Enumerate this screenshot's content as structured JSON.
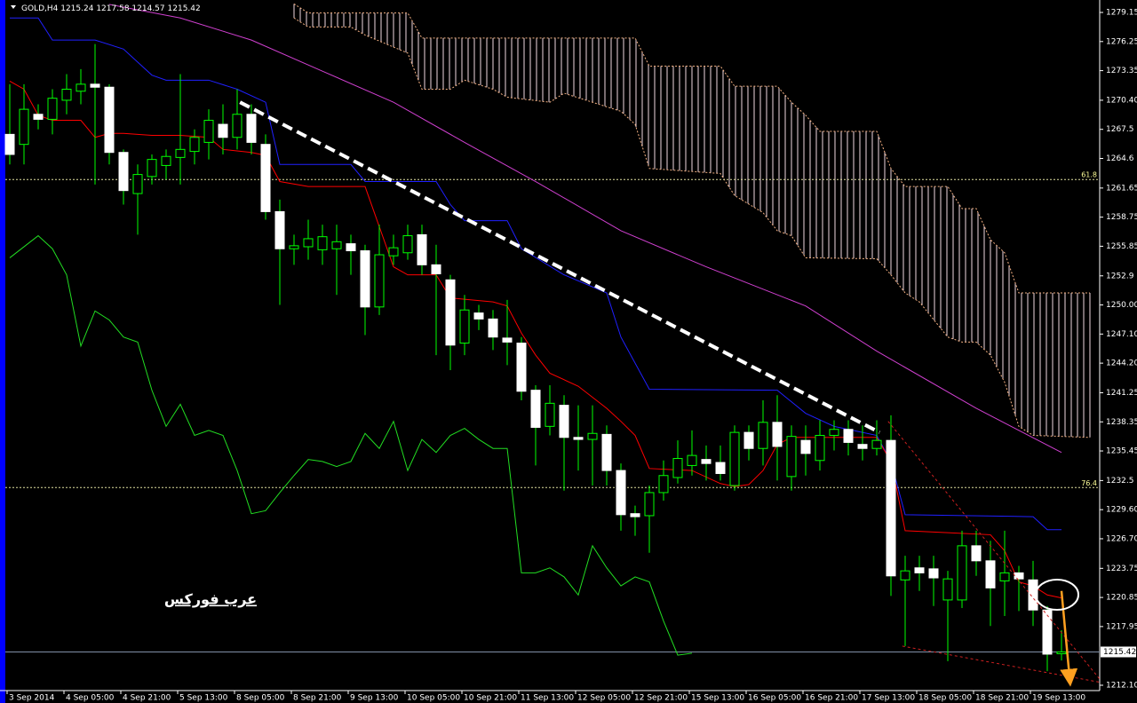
{
  "chart_data": {
    "type": "candlestick",
    "symbol": "GOLD,H4",
    "watermark": "عرب فوركس",
    "open": [
      1267.0,
      1266.0,
      1269.0,
      1268.5,
      1270.4,
      1271.3,
      1272.0,
      1271.7,
      1265.2,
      1261.1,
      1262.8,
      1263.9,
      1264.7,
      1265.3,
      1266.2,
      1268.0,
      1266.7,
      1269.0,
      1266.0,
      1259.3,
      1255.6,
      1255.8,
      1255.5,
      1255.6,
      1256.1,
      1255.4,
      1249.8,
      1254.9,
      1255.2,
      1257.0,
      1254.0,
      1252.5,
      1246.2,
      1249.2,
      1248.6,
      1246.7,
      1246.2,
      1241.5,
      1237.9,
      1240.0,
      1236.8,
      1236.6,
      1237.1,
      1233.5,
      1229.2,
      1229.0,
      1231.3,
      1232.8,
      1234.0,
      1234.6,
      1234.3,
      1232.0,
      1237.3,
      1235.7,
      1238.3,
      1232.9,
      1236.5,
      1234.5,
      1237.0,
      1237.6,
      1236.1,
      1235.7,
      1236.5,
      1222.6,
      1223.8,
      1223.7,
      1220.6,
      1220.6,
      1226.0,
      1224.5,
      1222.5,
      1223.3,
      1222.6,
      1219.6,
      1215.24
    ],
    "high": [
      1272,
      1272,
      1270,
      1271.5,
      1273,
      1273.5,
      1276,
      1272,
      1265.5,
      1264,
      1265,
      1265.5,
      1273,
      1267.5,
      1269.5,
      1270,
      1271.5,
      1270,
      1267,
      1260.5,
      1257,
      1258.5,
      1258,
      1258,
      1257,
      1256,
      1258,
      1257,
      1258,
      1258,
      1256,
      1253,
      1251,
      1250,
      1249.5,
      1250.5,
      1246.8,
      1242,
      1242,
      1241,
      1240,
      1240,
      1238,
      1234.2,
      1230,
      1232,
      1234.5,
      1236.5,
      1237.5,
      1236,
      1236,
      1238,
      1238,
      1240.5,
      1241,
      1238,
      1238,
      1238.5,
      1238.5,
      1238.5,
      1238,
      1238.5,
      1239,
      1225,
      1225,
      1225,
      1223.5,
      1227.5,
      1227.5,
      1226.5,
      1227.5,
      1224,
      1224.5,
      1220,
      1217.58
    ],
    "low": [
      1264,
      1264,
      1267.5,
      1267,
      1269,
      1270,
      1262,
      1264,
      1260,
      1257,
      1262,
      1262.5,
      1262,
      1264,
      1264.5,
      1265,
      1265.5,
      1265,
      1258.5,
      1250,
      1254,
      1254.5,
      1254,
      1251,
      1253,
      1247,
      1249,
      1254,
      1254.5,
      1253,
      1245,
      1243.5,
      1245,
      1247.5,
      1245.5,
      1244,
      1240.5,
      1234,
      1237,
      1231.5,
      1233.5,
      1232,
      1232,
      1227.5,
      1227,
      1225.3,
      1230.5,
      1232.2,
      1233,
      1232.5,
      1232.5,
      1231.5,
      1234.5,
      1234,
      1232.5,
      1231.5,
      1233,
      1233.5,
      1235.5,
      1235,
      1234.5,
      1235,
      1221,
      1216,
      1221.5,
      1220,
      1214.5,
      1219.8,
      1223,
      1218,
      1219,
      1219.5,
      1218,
      1213.5,
      1214.57
    ],
    "close": [
      1265.0,
      1269.5,
      1268.5,
      1270.6,
      1271.5,
      1272.0,
      1271.7,
      1265.2,
      1261.4,
      1263.0,
      1264.5,
      1264.8,
      1265.5,
      1266.7,
      1268.4,
      1266.7,
      1269.0,
      1266.2,
      1259.3,
      1255.6,
      1255.9,
      1256.6,
      1256.8,
      1256.3,
      1255.4,
      1249.8,
      1255.0,
      1255.7,
      1256.9,
      1254.0,
      1253.1,
      1246.0,
      1249.5,
      1248.6,
      1246.8,
      1246.3,
      1241.4,
      1237.8,
      1240.2,
      1236.8,
      1236.6,
      1237.2,
      1233.5,
      1229.1,
      1228.9,
      1231.3,
      1233.0,
      1234.7,
      1235.0,
      1234.2,
      1233.2,
      1237.3,
      1235.7,
      1238.3,
      1235.9,
      1236.9,
      1235.2,
      1237.0,
      1237.6,
      1236.3,
      1235.7,
      1236.5,
      1223.0,
      1223.5,
      1223.3,
      1222.8,
      1222.7,
      1226.0,
      1224.5,
      1221.8,
      1223.3,
      1222.7,
      1219.6,
      1215.2,
      1215.42
    ],
    "up_color": "#000000",
    "down_color": "#ffffff",
    "wick_color": "#00ff00",
    "lines": [
      {
        "color": "#2020ff",
        "x": [
          0,
          2,
          3,
          6,
          8,
          9,
          10,
          11,
          14,
          16,
          18,
          19,
          24,
          25,
          30,
          31,
          32,
          35,
          36,
          39,
          42,
          43,
          45,
          54,
          56,
          58,
          61,
          62,
          63,
          72,
          73,
          74
        ],
        "values": [
          1278.6,
          1278.6,
          1276.4,
          1276.4,
          1275.5,
          1274.2,
          1272.9,
          1272.4,
          1272.4,
          1271.5,
          1270.2,
          1264.0,
          1264.0,
          1262.3,
          1262.3,
          1260.0,
          1258.4,
          1258.4,
          1255.6,
          1253.0,
          1251.2,
          1246.8,
          1241.6,
          1241.5,
          1239.2,
          1237.9,
          1237.0,
          1234.4,
          1229.1,
          1228.9,
          1227.6,
          1227.6
        ]
      },
      {
        "color": "#ff0000",
        "x": [
          0,
          1,
          2,
          3,
          5,
          6,
          7,
          8,
          10,
          12,
          14,
          15,
          17,
          18,
          19,
          21,
          25,
          26,
          27,
          28,
          30,
          31,
          34,
          35,
          36,
          37,
          38,
          40,
          42,
          43,
          44,
          45,
          48,
          50,
          51,
          52,
          53,
          54,
          55,
          61,
          62,
          63,
          66,
          69,
          70,
          71,
          72,
          73,
          74
        ],
        "values": [
          1272.3,
          1271.5,
          1268.9,
          1268.4,
          1268.4,
          1266.7,
          1267.1,
          1267.1,
          1266.9,
          1266.9,
          1266.7,
          1265.5,
          1265.2,
          1264.9,
          1262.3,
          1261.8,
          1261.8,
          1257.8,
          1253.8,
          1253.0,
          1253.0,
          1250.7,
          1250.3,
          1249.9,
          1247.2,
          1245.0,
          1243.2,
          1241.9,
          1239.7,
          1238.4,
          1237.0,
          1233.7,
          1233.5,
          1232.2,
          1231.9,
          1232.1,
          1233.5,
          1236.1,
          1236.8,
          1236.8,
          1234.4,
          1227.5,
          1227.3,
          1227.1,
          1225.5,
          1222.4,
          1222.0,
          1221.1,
          1220.8
        ]
      },
      {
        "color": "#d040d0",
        "x": [
          7,
          12,
          17,
          22,
          27,
          32,
          37,
          43,
          49,
          56,
          61,
          68,
          74
        ],
        "values": [
          1279.95,
          1278.6,
          1276.4,
          1273.3,
          1270.2,
          1266.2,
          1262.3,
          1257.4,
          1253.8,
          1249.9,
          1245.4,
          1239.7,
          1235.3
        ]
      },
      {
        "color": "#22dd22",
        "x": [
          0,
          2,
          3,
          4,
          5,
          6,
          7,
          8,
          9,
          10,
          11,
          12,
          13,
          14,
          15,
          16,
          17,
          18,
          19,
          20,
          21,
          22,
          23,
          24,
          25,
          26,
          27,
          28,
          29,
          30,
          31,
          32,
          33,
          34,
          35,
          36,
          37,
          38,
          39,
          40,
          41,
          42,
          43,
          44,
          45,
          46,
          47,
          48
        ],
        "values": [
          1254.7,
          1256.9,
          1255.6,
          1253.0,
          1245.9,
          1249.4,
          1248.5,
          1246.8,
          1246.3,
          1241.5,
          1237.9,
          1240.1,
          1237.0,
          1237.5,
          1237.0,
          1233.5,
          1229.2,
          1229.5,
          1231.3,
          1233.0,
          1234.6,
          1234.4,
          1233.9,
          1234.4,
          1237.2,
          1235.7,
          1238.4,
          1233.5,
          1236.6,
          1235.3,
          1237.0,
          1237.7,
          1236.6,
          1235.7,
          1235.7,
          1223.3,
          1223.3,
          1223.8,
          1222.9,
          1221.1,
          1226.0,
          1223.8,
          1222.0,
          1222.9,
          1222.4,
          1218.5,
          1215.1,
          1215.3
        ]
      }
    ],
    "cloud": {
      "color": "#f4b183",
      "hatch_color": "#f0d8e0",
      "span_a": {
        "x": [
          20,
          21,
          28,
          29,
          44,
          45,
          50,
          51,
          54,
          55,
          56,
          57,
          61,
          62,
          63,
          64,
          66,
          67,
          68,
          69,
          70,
          71,
          76
        ],
        "values": [
          1280.0,
          1279.1,
          1279.1,
          1276.6,
          1276.6,
          1273.8,
          1273.8,
          1271.8,
          1271.8,
          1270.2,
          1268.9,
          1267.3,
          1267.3,
          1263.6,
          1261.8,
          1261.8,
          1261.8,
          1259.6,
          1259.6,
          1256.5,
          1255.2,
          1251.2,
          1251.2
        ]
      },
      "span_b": {
        "x": [
          20,
          21,
          24,
          25,
          28,
          29,
          31,
          32,
          34,
          35,
          38,
          39,
          43,
          44,
          45,
          50,
          51,
          53,
          54,
          55,
          56,
          61,
          62,
          63,
          64,
          66,
          67,
          68,
          69,
          70,
          71,
          72,
          76
        ],
        "values": [
          1278.6,
          1277.7,
          1277.7,
          1276.9,
          1275.1,
          1271.5,
          1271.5,
          1272.4,
          1271.5,
          1270.7,
          1270.2,
          1271.1,
          1269.3,
          1268.0,
          1263.6,
          1263.1,
          1260.9,
          1259.2,
          1257.4,
          1256.9,
          1254.7,
          1254.6,
          1253.0,
          1251.2,
          1250.3,
          1246.8,
          1246.3,
          1246.3,
          1245.0,
          1242.3,
          1237.9,
          1237.0,
          1236.8
        ]
      }
    },
    "fib_levels": [
      {
        "label": "61.8",
        "price": 1262.5
      },
      {
        "label": "76.4",
        "price": 1231.8
      }
    ],
    "trendlines": [
      {
        "color": "#ffffff",
        "dashed": true,
        "x": [
          16.2,
          61.2
        ],
        "values": [
          1270.2,
          1237.3
        ]
      },
      {
        "color": "#cc2020",
        "dashed": true,
        "x": [
          61.8,
          76.7
        ],
        "values": [
          1238.4,
          1212.7
        ]
      },
      {
        "color": "#cc2020",
        "dashed": true,
        "x": [
          62.8,
          76.7
        ],
        "values": [
          1216.0,
          1212.4
        ]
      }
    ],
    "arrow": {
      "color": "#ffa020",
      "x": [
        74,
        74.6
      ],
      "values": [
        1221.5,
        1212.4
      ]
    },
    "x_labels": [
      "3 Sep 2014",
      "4 Sep 05:00",
      "4 Sep 21:00",
      "5 Sep 13:00",
      "8 Sep 05:00",
      "8 Sep 21:00",
      "9 Sep 13:00",
      "10 Sep 05:00",
      "10 Sep 21:00",
      "11 Sep 13:00",
      "12 Sep 05:00",
      "12 Sep 21:00",
      "15 Sep 13:00",
      "16 Sep 05:00",
      "16 Sep 21:00",
      "17 Sep 13:00",
      "18 Sep 05:00",
      "18 Sep 21:00",
      "19 Sep 13:00"
    ],
    "ylim": [
      1211.57,
      1280.39
    ],
    "yticks": [
      1279.15,
      1276.25,
      1273.35,
      {
        "value": 1270.4,
        "label": "1270.40"
      },
      1267.5,
      1264.6,
      1261.65,
      1258.75,
      1255.85,
      1252.9,
      {
        "value": 1250,
        "label": "1250.00"
      },
      {
        "value": 1247.1,
        "label": "1247.10"
      },
      {
        "value": 1244.2,
        "label": "1244.20"
      },
      1241.25,
      1238.35,
      1235.45,
      1232.5,
      {
        "value": 1229.6,
        "label": "1229.60"
      },
      {
        "value": 1226.7,
        "label": "1226.70"
      },
      1223.75,
      1220.85,
      1217.95,
      {
        "value": 1212.1,
        "label": "1212.10"
      }
    ]
  }
}
